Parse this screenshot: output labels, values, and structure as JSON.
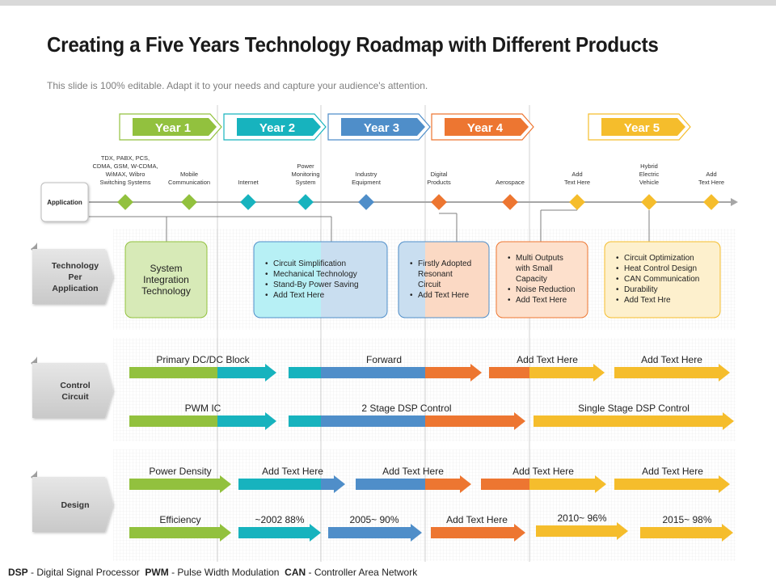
{
  "title": "Creating a Five Years Technology Roadmap with Different Products",
  "subtitle": "This slide is 100% editable. Adapt it to your needs and capture your audience's attention.",
  "colors": {
    "green": "#92c13e",
    "teal": "#17b3be",
    "blue": "#4f8ec9",
    "orange": "#ed7631",
    "yellow": "#f5bd2c",
    "gray": "#a6a6a6"
  },
  "years": [
    {
      "label": "Year 1",
      "color": "#92c13e"
    },
    {
      "label": "Year 2",
      "color": "#17b3be"
    },
    {
      "label": "Year 3",
      "color": "#4f8ec9"
    },
    {
      "label": "Year 4",
      "color": "#ed7631"
    },
    {
      "label": "Year 5",
      "color": "#f5bd2c"
    }
  ],
  "application": {
    "label": "Application",
    "milestones": [
      {
        "lines": [
          "TDX, PABX,  PCS,",
          "CDMA, GSM, W-CDMA,",
          "WiMAX, Wibro",
          "Switching Systems"
        ],
        "color": "#92c13e"
      },
      {
        "lines": [
          "Mobile",
          "Communication"
        ],
        "color": "#92c13e"
      },
      {
        "lines": [
          "Internet"
        ],
        "color": "#17b3be"
      },
      {
        "lines": [
          "Power",
          "Monitoring",
          "System"
        ],
        "color": "#17b3be"
      },
      {
        "lines": [
          "Industry",
          "Equipment"
        ],
        "color": "#4f8ec9"
      },
      {
        "lines": [
          "Digital",
          "Products"
        ],
        "color": "#ed7631"
      },
      {
        "lines": [
          "Aerospace"
        ],
        "color": "#ed7631"
      },
      {
        "lines": [
          "Add",
          "Text Here"
        ],
        "color": "#f5bd2c"
      },
      {
        "lines": [
          "Hybrid",
          "Electric",
          "Vehicle"
        ],
        "color": "#f5bd2c"
      },
      {
        "lines": [
          "Add",
          "Text Here"
        ],
        "color": "#f5bd2c"
      }
    ]
  },
  "sections": {
    "technology": [
      "Technology",
      "Per",
      "Application"
    ],
    "control": [
      "Control",
      "Circuit"
    ],
    "design": [
      "Design"
    ]
  },
  "tech_boxes": [
    {
      "type": "plain",
      "lines": [
        "System",
        "Integration",
        "Technology"
      ]
    },
    {
      "type": "bullets",
      "items": [
        "Circuit Simplification",
        "Mechanical Technology",
        "Stand-By Power Saving",
        "Add Text Here"
      ]
    },
    {
      "type": "bullets",
      "items": [
        "Firstly Adopted",
        "Resonant",
        "Circuit",
        "Add Text Here"
      ]
    },
    {
      "type": "bullets",
      "items": [
        "Multi Outputs",
        "with Small",
        "Capacity",
        "Noise Reduction",
        "Add Text Here"
      ]
    },
    {
      "type": "bullets",
      "items": [
        "Circuit Optimization",
        "Heat Control Design",
        "CAN Communication",
        "Durability",
        "Add Text Hre"
      ]
    }
  ],
  "control_rows": [
    {
      "labels": [
        "Primary DC/DC Block",
        "Forward",
        "Add Text Here",
        "Add Text Here"
      ]
    },
    {
      "labels": [
        "PWM IC",
        "2 Stage DSP Control",
        "Single Stage DSP Control"
      ]
    }
  ],
  "design_rows": [
    {
      "labels": [
        "Power Density",
        "Add Text Here",
        "Add Text Here",
        "Add Text Here",
        "Add Text Here"
      ]
    },
    {
      "labels": [
        "Efficiency",
        "~2002 88%",
        "2005~ 90%",
        "Add Text Here",
        "2010~ 96%",
        "2015~ 98%"
      ]
    }
  ],
  "footnote": [
    {
      "abbr": "DSP",
      "text": " - Digital Signal Processor  "
    },
    {
      "abbr": "PWM",
      "text": " - Pulse Width Modulation  "
    },
    {
      "abbr": "CAN",
      "text": " - Controller Area Network"
    }
  ]
}
